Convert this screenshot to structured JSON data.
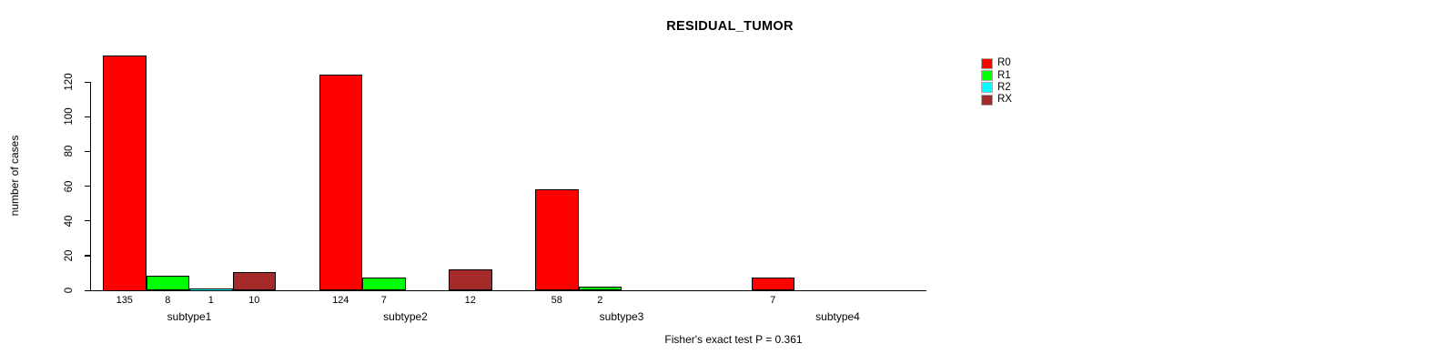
{
  "title": "RESIDUAL_TUMOR",
  "caption": "Fisher's exact test P = 0.361",
  "chart_data": {
    "type": "bar",
    "grouped": true,
    "title": "RESIDUAL_TUMOR",
    "xlabel": "",
    "ylabel": "number of cases",
    "categories": [
      "subtype1",
      "subtype2",
      "subtype3",
      "subtype4"
    ],
    "series": [
      {
        "name": "R0",
        "color": "#ff0000",
        "values": [
          135,
          124,
          58,
          7
        ]
      },
      {
        "name": "R1",
        "color": "#00ff00",
        "values": [
          8,
          7,
          2,
          0
        ]
      },
      {
        "name": "R2",
        "color": "#00ffff",
        "values": [
          1,
          0,
          0,
          0
        ]
      },
      {
        "name": "RX",
        "color": "#a52a2a",
        "values": [
          10,
          12,
          0,
          0
        ]
      }
    ],
    "value_labels": [
      [
        "135",
        "8",
        "1",
        "10"
      ],
      [
        "124",
        "7",
        "",
        "12"
      ],
      [
        "58",
        "2",
        "",
        ""
      ],
      [
        "7",
        "",
        "",
        ""
      ]
    ],
    "yticks": [
      0,
      20,
      40,
      60,
      80,
      100,
      120
    ],
    "ylim": [
      0,
      140
    ],
    "grid": false,
    "legend_position": "right-inside",
    "annotation": "Fisher's exact test P = 0.361"
  }
}
